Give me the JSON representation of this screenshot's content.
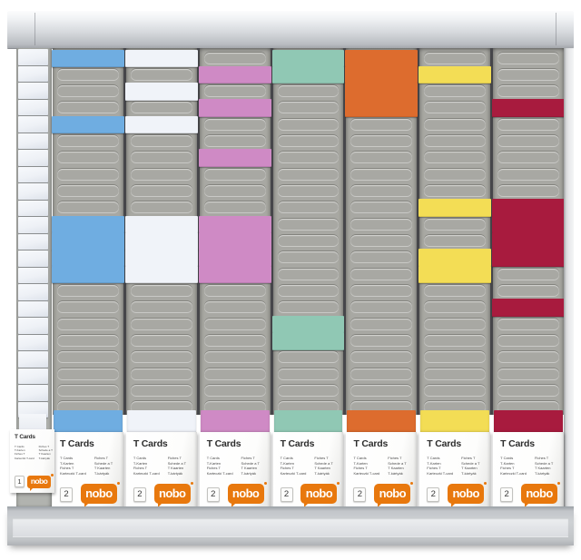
{
  "board": {
    "index_strip": {
      "tab_count": 22,
      "card_color": "#eef1f6"
    },
    "slot_count_per_column": 22,
    "columns": [
      {
        "id": "column-1",
        "card_color": "#6fade1",
        "filled_slots": [
          1,
          5,
          11,
          12,
          13,
          14
        ]
      },
      {
        "id": "column-2",
        "card_color": "#f0f3f9",
        "filled_slots": [
          1,
          3,
          5,
          11,
          12,
          13,
          14
        ]
      },
      {
        "id": "column-3",
        "card_color": "#cf8ac5",
        "filled_slots": [
          2,
          4,
          7,
          11,
          12,
          13,
          14
        ]
      },
      {
        "id": "column-4",
        "card_color": "#90c8b4",
        "filled_slots": [
          1,
          2,
          17,
          18
        ]
      },
      {
        "id": "column-5",
        "card_color": "#dd6c2e",
        "filled_slots": [
          1,
          2,
          3,
          4
        ]
      },
      {
        "id": "column-6",
        "card_color": "#f3dd55",
        "filled_slots": [
          2,
          10,
          13,
          14
        ]
      },
      {
        "id": "column-7",
        "card_color": "#a81b3e",
        "filled_slots": [
          4,
          10,
          11,
          12,
          13,
          16
        ]
      }
    ],
    "empty_slot_color": "#a8a8a3"
  },
  "refill_box": {
    "title": "T Cards",
    "languages_left": [
      "T Cards",
      "T-Karten",
      "Fiches T",
      "Karteczki T-card"
    ],
    "languages_right": [
      "Fiches T",
      "Schede a T",
      "T Kaarten",
      "T-kártyák"
    ],
    "quantity_badge": "2",
    "brand": "nobo",
    "brand_color": "#e8780d"
  },
  "small_box": {
    "title": "T Cards",
    "quantity_badge": "1",
    "brand": "nobo"
  }
}
